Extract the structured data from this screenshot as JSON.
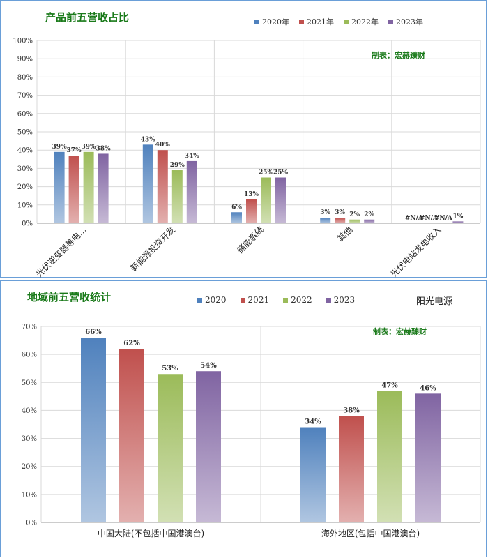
{
  "panel1": {
    "title": "产品前五营收占比",
    "credit": "制表：宏赫臻财",
    "legend": [
      {
        "label": "2020年",
        "color": "#4f81bd"
      },
      {
        "label": "2021年",
        "color": "#c0504d"
      },
      {
        "label": "2022年",
        "color": "#9bbb59"
      },
      {
        "label": "2023年",
        "color": "#8064a2"
      }
    ]
  },
  "panel2": {
    "title": "地域前五营收统计",
    "brand": "阳光电源",
    "credit": "制表：宏赫臻财",
    "legend": [
      {
        "label": "2020",
        "color": "#4f81bd"
      },
      {
        "label": "2021",
        "color": "#c0504d"
      },
      {
        "label": "2022",
        "color": "#9bbb59"
      },
      {
        "label": "2023",
        "color": "#8064a2"
      }
    ]
  },
  "chart_data": [
    {
      "type": "bar",
      "title": "产品前五营收占比",
      "categories": [
        "光伏逆变器等电…",
        "新能源投资开发",
        "储能系统",
        "其他",
        "光伏电站发电收入"
      ],
      "ylim": [
        0,
        100
      ],
      "yticks": [
        "0%",
        "10%",
        "20%",
        "30%",
        "40%",
        "50%",
        "60%",
        "70%",
        "80%",
        "90%",
        "100%"
      ],
      "grid": true,
      "legend_position": "top-right",
      "series": [
        {
          "name": "2020年",
          "color": "#4f81bd",
          "values": [
            39,
            43,
            6,
            3,
            null
          ],
          "labels": [
            "39%",
            "43%",
            "6%",
            "3%",
            "#N/A"
          ]
        },
        {
          "name": "2021年",
          "color": "#c0504d",
          "values": [
            37,
            40,
            13,
            3,
            null
          ],
          "labels": [
            "37%",
            "40%",
            "13%",
            "3%",
            "#N/A"
          ]
        },
        {
          "name": "2022年",
          "color": "#9bbb59",
          "values": [
            39,
            29,
            25,
            2,
            null
          ],
          "labels": [
            "39%",
            "29%",
            "25%",
            "2%",
            "#N/A"
          ]
        },
        {
          "name": "2023年",
          "color": "#8064a2",
          "values": [
            38,
            34,
            25,
            2,
            1
          ],
          "labels": [
            "38%",
            "34%",
            "25%",
            "2%",
            "1%"
          ]
        }
      ]
    },
    {
      "type": "bar",
      "title": "地域前五营收统计",
      "categories": [
        "中国大陆(不包括中国港澳台)",
        "海外地区(包括中国港澳台)"
      ],
      "ylim": [
        0,
        70
      ],
      "yticks": [
        "0%",
        "10%",
        "20%",
        "30%",
        "40%",
        "50%",
        "60%",
        "70%"
      ],
      "grid": true,
      "legend_position": "top",
      "series": [
        {
          "name": "2020",
          "color": "#4f81bd",
          "values": [
            66,
            34
          ],
          "labels": [
            "66%",
            "34%"
          ]
        },
        {
          "name": "2021",
          "color": "#c0504d",
          "values": [
            62,
            38
          ],
          "labels": [
            "62%",
            "38%"
          ]
        },
        {
          "name": "2022",
          "color": "#9bbb59",
          "values": [
            53,
            47
          ],
          "labels": [
            "53%",
            "47%"
          ]
        },
        {
          "name": "2023",
          "color": "#8064a2",
          "values": [
            54,
            46
          ],
          "labels": [
            "54%",
            "46%"
          ]
        }
      ]
    }
  ]
}
